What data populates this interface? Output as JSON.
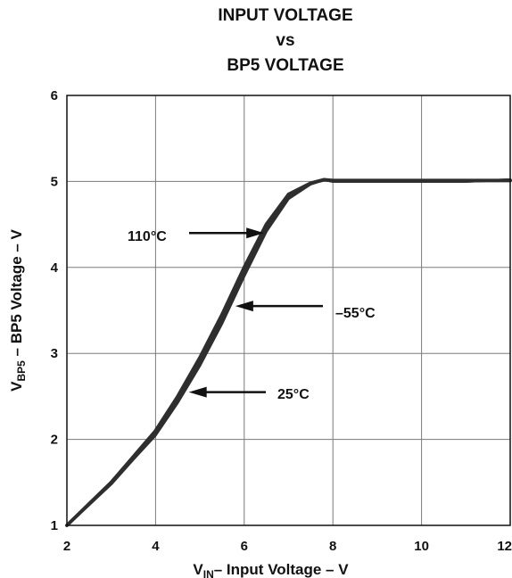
{
  "chart_data": {
    "type": "line",
    "title": [
      "INPUT VOLTAGE",
      "vs",
      "BP5 VOLTAGE"
    ],
    "xlabel": {
      "main": "V",
      "sub": "IN",
      "rest": "– Input Voltage – V"
    },
    "ylabel": {
      "main": "V",
      "sub": "BP5",
      "rest": " – BP5 Voltage – V"
    },
    "xlim": [
      2,
      12
    ],
    "ylim": [
      1,
      6
    ],
    "x_ticks": [
      2,
      4,
      6,
      8,
      10,
      12
    ],
    "y_ticks": [
      1,
      2,
      3,
      4,
      5,
      6
    ],
    "grid": true,
    "series": [
      {
        "name": "110°C",
        "x": [
          2,
          2.5,
          3,
          3.5,
          4,
          4.5,
          5,
          5.5,
          6,
          6.5,
          7,
          7.5,
          7.8,
          8,
          9,
          10,
          11,
          12
        ],
        "y": [
          1.0,
          1.25,
          1.5,
          1.8,
          2.1,
          2.5,
          2.95,
          3.45,
          4.0,
          4.5,
          4.85,
          4.98,
          5.02,
          5.01,
          5.01,
          5.01,
          5.01,
          5.01
        ]
      },
      {
        "name": "–55°C",
        "x": [
          2,
          2.5,
          3,
          3.5,
          4,
          4.5,
          5,
          5.5,
          6,
          6.5,
          7,
          7.5,
          7.8,
          8,
          9,
          10,
          11,
          12
        ],
        "y": [
          1.0,
          1.24,
          1.48,
          1.77,
          2.05,
          2.43,
          2.86,
          3.35,
          3.9,
          4.42,
          4.8,
          4.97,
          5.02,
          5.0,
          5.0,
          5.0,
          5.0,
          5.02
        ]
      },
      {
        "name": "25°C",
        "x": [
          2,
          2.5,
          3,
          3.5,
          4,
          4.5,
          5,
          5.5,
          6,
          6.5,
          7,
          7.5,
          7.8,
          8,
          9,
          10,
          11,
          12
        ],
        "y": [
          1.0,
          1.24,
          1.49,
          1.78,
          2.07,
          2.46,
          2.9,
          3.4,
          3.95,
          4.46,
          4.83,
          4.97,
          5.02,
          5.0,
          5.0,
          5.0,
          5.0,
          5.02
        ]
      }
    ],
    "annotations": [
      {
        "text": "110°C",
        "series": "110°C",
        "arrow_to": {
          "x": 6.45,
          "y": 4.4
        }
      },
      {
        "text": "–55°C",
        "series": "–55°C",
        "arrow_to": {
          "x": 5.8,
          "y": 3.55
        }
      },
      {
        "text": "25°C",
        "series": "25°C",
        "arrow_to": {
          "x": 4.75,
          "y": 2.55
        }
      }
    ],
    "colors": {
      "line": "#2e2e2e",
      "grid": "#7a7a7a",
      "frame": "#111111"
    }
  }
}
